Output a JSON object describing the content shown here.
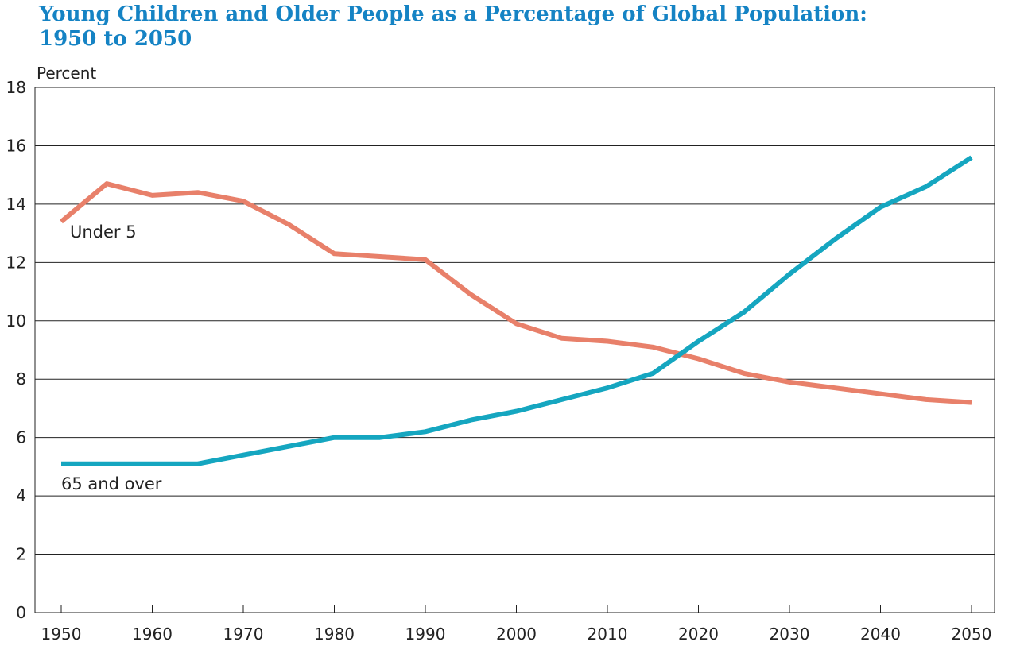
{
  "chart_data": {
    "type": "line",
    "title": "Young Children and Older People as a Percentage of Global Population:",
    "subtitle": "1950 to 2050",
    "ylabel": "Percent",
    "xlabel": "",
    "ylim": [
      0,
      18
    ],
    "xlim": [
      1950,
      2050
    ],
    "yticks": [
      "0",
      "2",
      "4",
      "6",
      "8",
      "10",
      "12",
      "14",
      "16",
      "18"
    ],
    "xticks": [
      "1950",
      "1960",
      "1970",
      "1980",
      "1990",
      "2000",
      "2010",
      "2020",
      "2030",
      "2040",
      "2050"
    ],
    "grid": true,
    "x": [
      1950,
      1955,
      1960,
      1965,
      1970,
      1975,
      1980,
      1985,
      1990,
      1995,
      2000,
      2005,
      2010,
      2015,
      2020,
      2025,
      2030,
      2035,
      2040,
      2045,
      2050
    ],
    "series": [
      {
        "name": "Under 5",
        "color": "#e8806a",
        "values": [
          13.4,
          14.7,
          14.3,
          14.4,
          14.1,
          13.3,
          12.3,
          12.2,
          12.1,
          10.9,
          9.9,
          9.4,
          9.3,
          9.1,
          8.7,
          8.2,
          7.9,
          7.7,
          7.5,
          7.3,
          7.2
        ]
      },
      {
        "name": "65 and over",
        "color": "#15a6c0",
        "values": [
          5.1,
          5.1,
          5.1,
          5.1,
          5.4,
          5.7,
          6.0,
          6.0,
          6.2,
          6.6,
          6.9,
          7.3,
          7.7,
          8.2,
          9.3,
          10.3,
          11.6,
          12.8,
          13.9,
          14.6,
          15.6
        ]
      }
    ]
  }
}
